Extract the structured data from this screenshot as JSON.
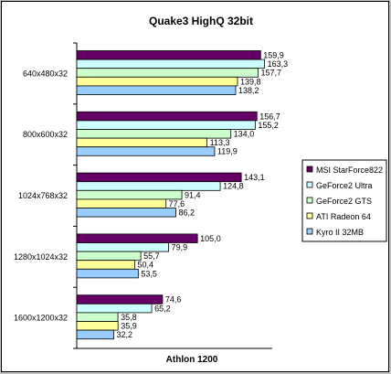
{
  "chart_data": {
    "type": "bar",
    "orientation": "horizontal",
    "title": "Quake3 HighQ 32bit",
    "xlabel": "Athlon 1200",
    "ylabel": "",
    "categories": [
      "640x480x32",
      "800x600x32",
      "1024x768x32",
      "1280x1024x32",
      "1600x1200x32"
    ],
    "xlim": [
      0,
      170
    ],
    "grid": false,
    "legend_position": "right",
    "series": [
      {
        "name": "MSI StarForce822",
        "color": "#660066",
        "values": [
          159.9,
          156.7,
          143.1,
          105.0,
          74.6
        ],
        "labels": [
          "159,9",
          "156,7",
          "143,1",
          "105,0",
          "74,6"
        ]
      },
      {
        "name": "GeForce2 Ultra",
        "color": "#ccffff",
        "values": [
          163.3,
          155.2,
          124.8,
          79.9,
          65.2
        ],
        "labels": [
          "163,3",
          "155,2",
          "124,8",
          "79,9",
          "65,2"
        ]
      },
      {
        "name": "GeForce2 GTS",
        "color": "#ccffcc",
        "values": [
          157.7,
          134.0,
          91.4,
          55.7,
          35.8
        ],
        "labels": [
          "157,7",
          "134,0",
          "91,4",
          "55,7",
          "35,8"
        ]
      },
      {
        "name": "ATI Radeon 64",
        "color": "#ffff99",
        "values": [
          139.8,
          113.3,
          77.6,
          50.4,
          35.9
        ],
        "labels": [
          "139,8",
          "113,3",
          "77,6",
          "50,4",
          "35,9"
        ]
      },
      {
        "name": "Kyro II 32MB",
        "color": "#99ccff",
        "values": [
          138.2,
          119.9,
          86.2,
          53.5,
          32.2
        ],
        "labels": [
          "138,2",
          "119,9",
          "86,2",
          "53,5",
          "32,2"
        ]
      }
    ]
  }
}
